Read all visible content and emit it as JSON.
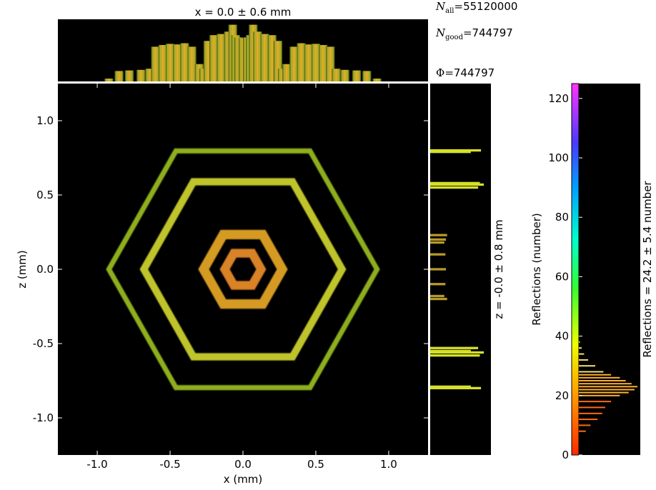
{
  "chart_data": {
    "type": "heatmap",
    "title": "",
    "main": {
      "xlabel": "x (mm)",
      "ylabel": "z (mm)",
      "xlim": [
        -1.27,
        1.27
      ],
      "ylim": [
        -1.25,
        1.25
      ],
      "xticks": [
        "-1.0",
        "-0.5",
        "0.0",
        "0.5",
        "1.0"
      ],
      "xtick_values": [
        -1.0,
        -0.5,
        0.0,
        0.5,
        1.0
      ],
      "yticks": [
        "-1.0",
        "-0.5",
        "0.0",
        "0.5",
        "1.0"
      ],
      "ytick_values": [
        -1.0,
        -0.5,
        0.0,
        0.5,
        1.0
      ],
      "background": "#000000",
      "hexagons": [
        {
          "name": "outer",
          "radius_mm": 0.92,
          "width_mm": 0.035,
          "color": "#8fae1a"
        },
        {
          "name": "second",
          "radius_mm": 0.68,
          "width_mm": 0.05,
          "color": "#bfc42a"
        },
        {
          "name": "third",
          "radius_mm": 0.27,
          "width_mm": 0.065,
          "color": "#d59a24"
        },
        {
          "name": "inner",
          "radius_mm": 0.125,
          "width_mm": 0.06,
          "color": "#d98226"
        }
      ]
    },
    "top_histogram": {
      "title_label": "x = 0.0 ± 0.6 mm",
      "x_mm": [
        -0.92,
        -0.85,
        -0.78,
        -0.7,
        -0.64,
        -0.6,
        -0.55,
        -0.5,
        -0.45,
        -0.4,
        -0.35,
        -0.3,
        -0.27,
        -0.24,
        -0.2,
        -0.15,
        -0.1,
        -0.07,
        -0.05,
        -0.03,
        0.0,
        0.03,
        0.05,
        0.07,
        0.1,
        0.15,
        0.2,
        0.24,
        0.27,
        0.3,
        0.35,
        0.4,
        0.45,
        0.5,
        0.55,
        0.6,
        0.64,
        0.7,
        0.78,
        0.85,
        0.92
      ],
      "counts": [
        0.05,
        0.18,
        0.19,
        0.2,
        0.22,
        0.6,
        0.63,
        0.65,
        0.64,
        0.66,
        0.6,
        0.3,
        0.22,
        0.7,
        0.8,
        0.82,
        0.86,
        0.98,
        0.8,
        0.76,
        0.75,
        0.76,
        0.8,
        0.98,
        0.86,
        0.82,
        0.8,
        0.7,
        0.22,
        0.3,
        0.6,
        0.66,
        0.64,
        0.65,
        0.63,
        0.6,
        0.22,
        0.2,
        0.19,
        0.18,
        0.05
      ]
    },
    "right_histogram": {
      "side_label": "z = -0.0 ± 0.8 mm",
      "z_mm": [
        -0.8,
        -0.79,
        -0.58,
        -0.56,
        -0.55,
        -0.53,
        -0.2,
        -0.18,
        -0.1,
        0.0,
        0.1,
        0.18,
        0.2,
        0.23,
        0.55,
        0.57,
        0.58,
        0.8,
        0.79
      ],
      "counts": [
        0.9,
        0.72,
        0.88,
        0.95,
        0.72,
        0.85,
        0.3,
        0.25,
        0.27,
        0.28,
        0.27,
        0.25,
        0.28,
        0.3,
        0.85,
        0.95,
        0.88,
        0.9,
        0.72
      ]
    },
    "colorbar": {
      "label": "Reflections (number)",
      "side_label": "Reflections = 24.2 ± 5.4 number",
      "ticks": [
        "0",
        "20",
        "40",
        "60",
        "80",
        "100",
        "120"
      ],
      "tick_values": [
        0,
        20,
        40,
        60,
        80,
        100,
        120
      ],
      "range": [
        0,
        125
      ],
      "histogram_values": [
        8,
        10,
        12,
        14,
        16,
        18,
        20,
        21,
        22,
        23,
        24,
        25,
        26,
        27,
        28,
        30,
        32,
        34,
        36,
        38
      ],
      "histogram_counts": [
        0.12,
        0.2,
        0.32,
        0.4,
        0.45,
        0.55,
        0.7,
        0.85,
        0.95,
        1.0,
        0.9,
        0.8,
        0.7,
        0.55,
        0.42,
        0.28,
        0.16,
        0.09,
        0.05,
        0.02
      ]
    },
    "stats": {
      "n_all_symbol": "N",
      "n_all_sub": "all",
      "n_all_value": "55120000",
      "n_good_symbol": "N",
      "n_good_sub": "good",
      "n_good_value": "744797",
      "phi_symbol": "Φ",
      "phi_value": "744797"
    }
  }
}
